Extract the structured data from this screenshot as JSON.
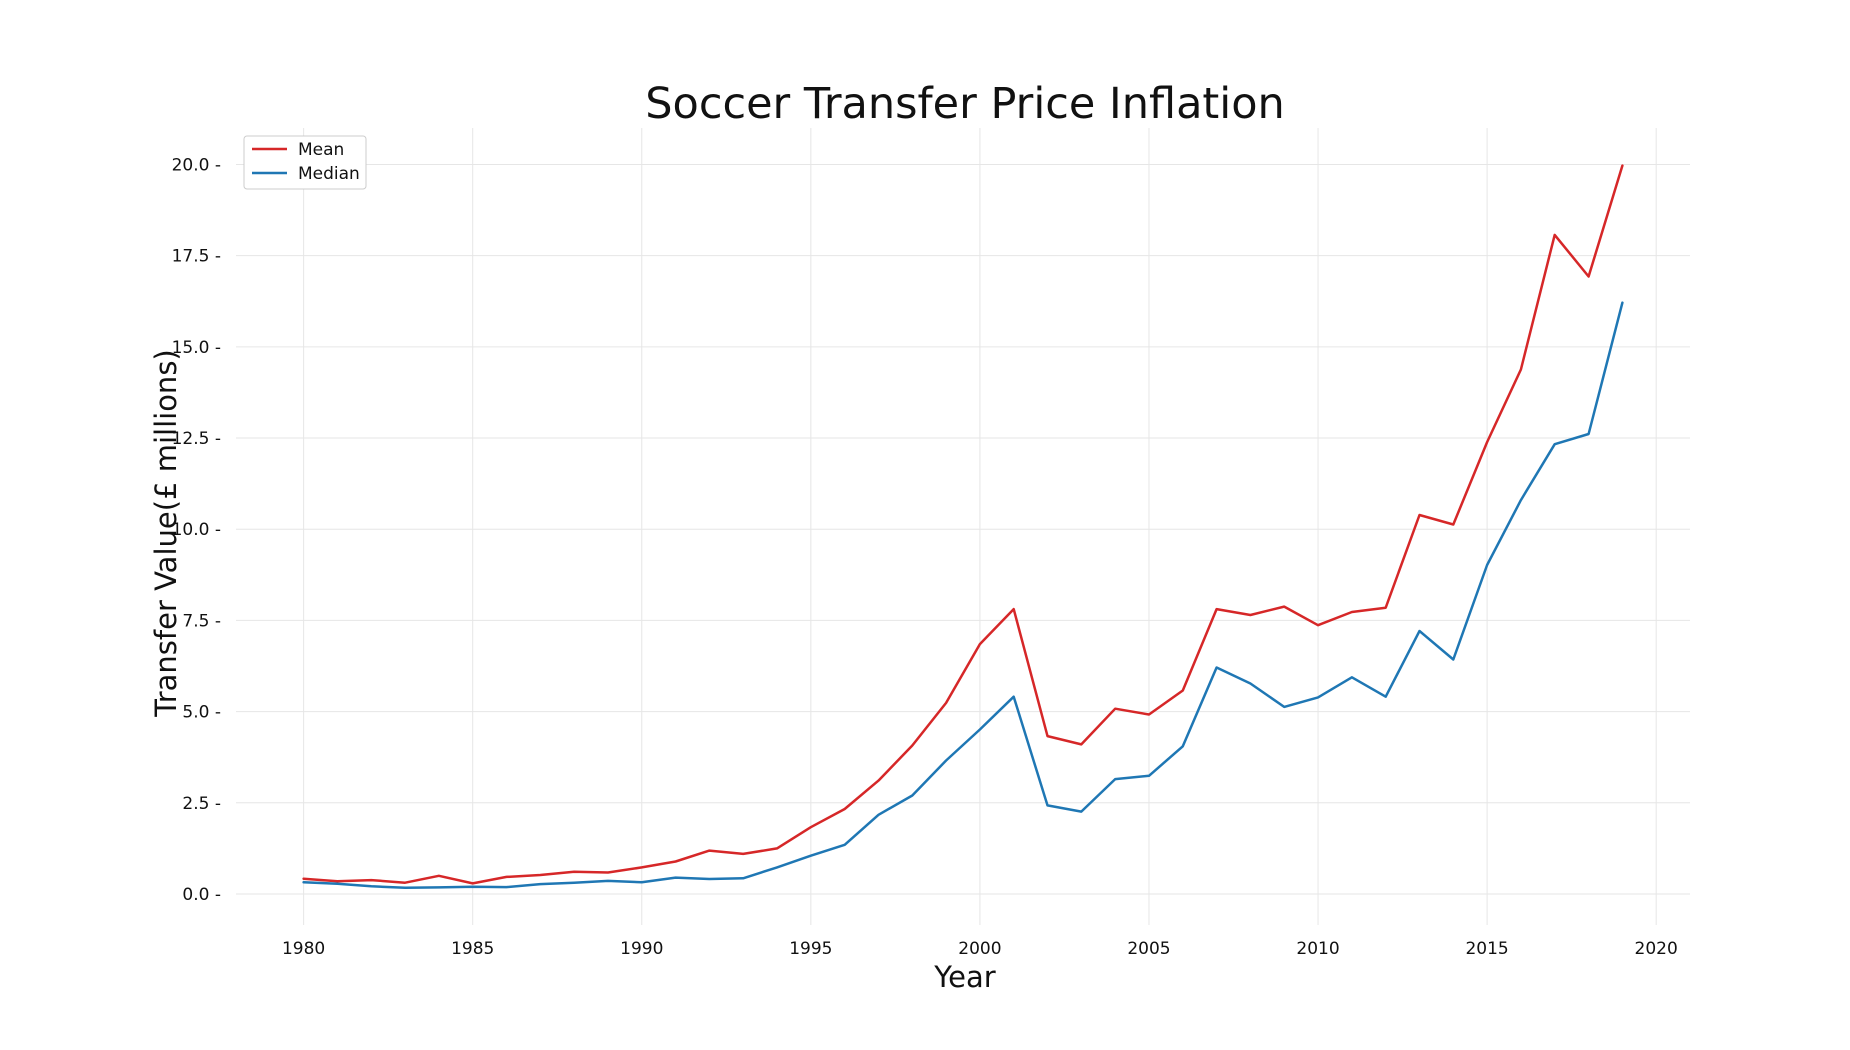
{
  "chart_data": {
    "type": "line",
    "title": "Soccer Transfer Price Inflation",
    "xlabel": "Year",
    "ylabel": "Transfer Value(£ millions)",
    "xlim": [
      1978,
      2021
    ],
    "ylim": [
      -0.85,
      21.0
    ],
    "xticks": [
      1980,
      1985,
      1990,
      1995,
      2000,
      2005,
      2010,
      2015,
      2020
    ],
    "yticks": [
      0.0,
      2.5,
      5.0,
      7.5,
      10.0,
      12.5,
      15.0,
      17.5,
      20.0
    ],
    "ytick_labels": [
      "0.0",
      "2.5",
      "5.0",
      "7.5",
      "10.0",
      "12.5",
      "15.0",
      "17.5",
      "20.0"
    ],
    "grid": true,
    "legend": "top-left",
    "x": [
      1980,
      1981,
      1982,
      1983,
      1984,
      1985,
      1986,
      1987,
      1988,
      1989,
      1990,
      1991,
      1992,
      1993,
      1994,
      1995,
      1996,
      1997,
      1998,
      1999,
      2000,
      2001,
      2002,
      2003,
      2004,
      2005,
      2006,
      2007,
      2008,
      2009,
      2010,
      2011,
      2012,
      2013,
      2014,
      2015,
      2016,
      2017,
      2018,
      2019
    ],
    "series": [
      {
        "name": "Mean",
        "color": "#d62728",
        "values": [
          0.42,
          0.35,
          0.38,
          0.31,
          0.5,
          0.29,
          0.47,
          0.52,
          0.61,
          0.59,
          0.73,
          0.89,
          1.19,
          1.1,
          1.25,
          1.83,
          2.33,
          3.11,
          4.07,
          5.24,
          6.85,
          7.81,
          4.33,
          4.1,
          5.08,
          4.92,
          5.58,
          7.81,
          7.65,
          7.88,
          7.37,
          7.73,
          7.85,
          10.39,
          10.13,
          12.39,
          14.38,
          18.07,
          16.93,
          19.97
        ]
      },
      {
        "name": "Median",
        "color": "#1f77b4",
        "values": [
          0.32,
          0.28,
          0.21,
          0.17,
          0.18,
          0.2,
          0.19,
          0.27,
          0.31,
          0.36,
          0.32,
          0.45,
          0.41,
          0.43,
          0.73,
          1.05,
          1.35,
          2.17,
          2.7,
          3.66,
          4.51,
          5.41,
          2.43,
          2.26,
          3.15,
          3.24,
          4.05,
          6.21,
          5.77,
          5.13,
          5.39,
          5.94,
          5.41,
          7.21,
          6.43,
          9.02,
          10.8,
          12.33,
          12.61,
          16.21
        ]
      }
    ]
  }
}
